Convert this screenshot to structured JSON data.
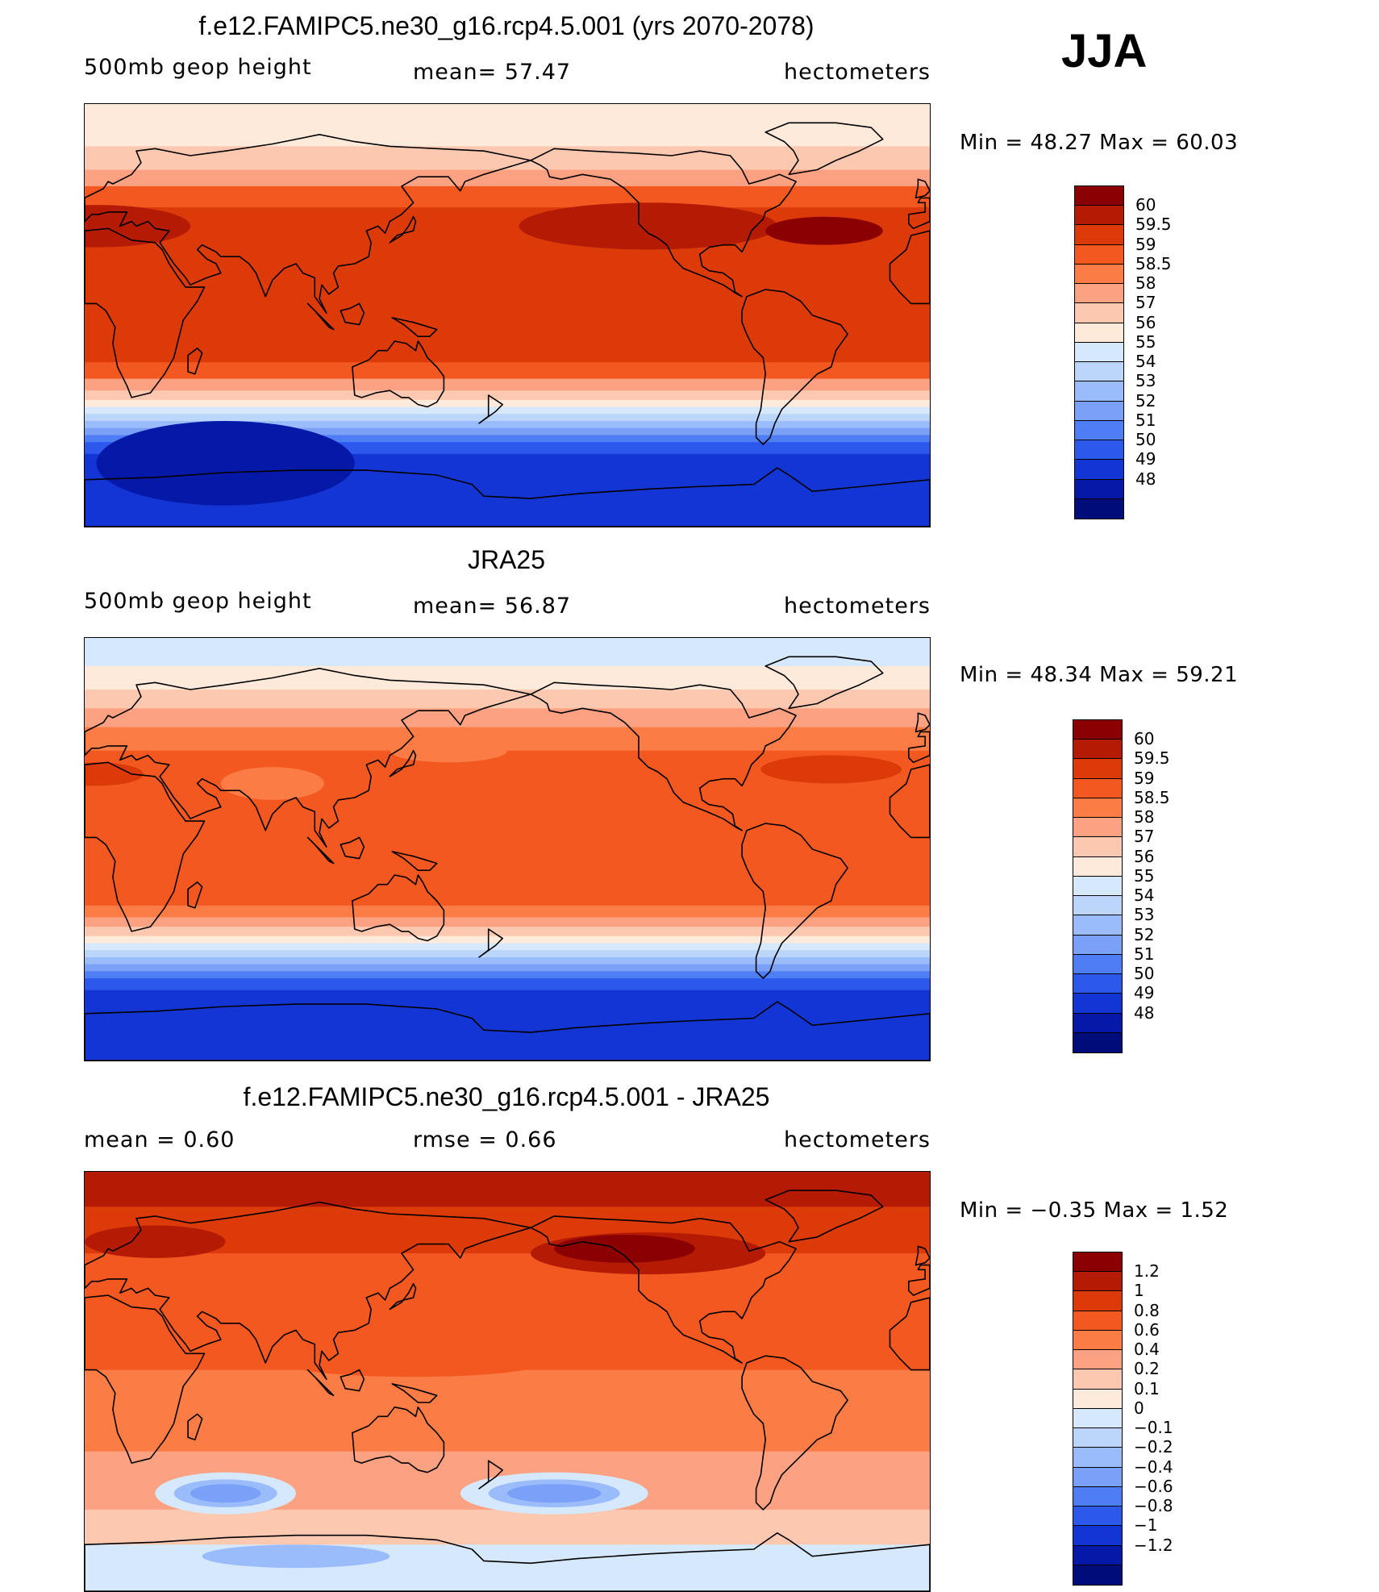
{
  "season": "JJA",
  "panels": [
    {
      "id": "model",
      "title": "f.e12.FAMIPC5.ne30_g16.rcp4.5.001 (yrs 2070-2078)",
      "left_label": "500mb geop height",
      "center_label": "mean=  57.47",
      "units": "hectometers",
      "stats": "Min =   48.27  Max =   60.03",
      "stats_min": 48.27,
      "stats_max": 60.03,
      "colors": [
        "#8b0000",
        "#b51a05",
        "#dd3a0a",
        "#f25820",
        "#fb7c45",
        "#fca282",
        "#fdc8b0",
        "#feeadb",
        "#d6e8fb",
        "#bcd6fb",
        "#9bbcfb",
        "#7aa0f8",
        "#4f7df3",
        "#2c58ec",
        "#1235d4",
        "#0618a8",
        "#000c7a"
      ],
      "levels": [
        "60",
        "59.5",
        "59",
        "58.5",
        "58",
        "57",
        "56",
        "55",
        "54",
        "53",
        "52",
        "51",
        "50",
        "49",
        "48"
      ],
      "bands": [
        {
          "lat_top": 90,
          "color": "#feeadb"
        },
        {
          "lat_top": 72,
          "color": "#fdc8b0"
        },
        {
          "lat_top": 62,
          "color": "#fca282"
        },
        {
          "lat_top": 55,
          "color": "#f25820"
        },
        {
          "lat_top": 46,
          "color": "#dd3a0a"
        },
        {
          "lat_top": -20,
          "color": "#f25820"
        },
        {
          "lat_top": -27,
          "color": "#fca282"
        },
        {
          "lat_top": -32,
          "color": "#fdc8b0"
        },
        {
          "lat_top": -36,
          "color": "#feeadb"
        },
        {
          "lat_top": -39,
          "color": "#d6e8fb"
        },
        {
          "lat_top": -42,
          "color": "#bcd6fb"
        },
        {
          "lat_top": -45,
          "color": "#9bbcfb"
        },
        {
          "lat_top": -48,
          "color": "#7aa0f8"
        },
        {
          "lat_top": -51,
          "color": "#4f7df3"
        },
        {
          "lat_top": -54,
          "color": "#2c58ec"
        },
        {
          "lat_top": -59,
          "color": "#1235d4"
        }
      ],
      "blobs": [
        {
          "lon": 240,
          "lat": 38,
          "rx": 55,
          "ry": 10,
          "color": "#b51a05"
        },
        {
          "lon": 5,
          "lat": 38,
          "rx": 40,
          "ry": 9,
          "color": "#b51a05"
        },
        {
          "lon": 315,
          "lat": 36,
          "rx": 25,
          "ry": 6,
          "color": "#8b0000"
        },
        {
          "lon": 60,
          "lat": -63,
          "rx": 55,
          "ry": 18,
          "color": "#0618a8"
        }
      ]
    },
    {
      "id": "obs",
      "title": "JRA25",
      "left_label": "500mb geop height",
      "center_label": "mean=  56.87",
      "units": "hectometers",
      "stats": "Min =   48.34  Max =   59.21",
      "stats_min": 48.34,
      "stats_max": 59.21,
      "colors": [
        "#8b0000",
        "#b51a05",
        "#dd3a0a",
        "#f25820",
        "#fb7c45",
        "#fca282",
        "#fdc8b0",
        "#feeadb",
        "#d6e8fb",
        "#bcd6fb",
        "#9bbcfb",
        "#7aa0f8",
        "#4f7df3",
        "#2c58ec",
        "#1235d4",
        "#0618a8",
        "#000c7a"
      ],
      "levels": [
        "60",
        "59.5",
        "59",
        "58.5",
        "58",
        "57",
        "56",
        "55",
        "54",
        "53",
        "52",
        "51",
        "50",
        "49",
        "48"
      ],
      "bands": [
        {
          "lat_top": 90,
          "color": "#d6e8fb"
        },
        {
          "lat_top": 78,
          "color": "#feeadb"
        },
        {
          "lat_top": 68,
          "color": "#fdc8b0"
        },
        {
          "lat_top": 60,
          "color": "#fca282"
        },
        {
          "lat_top": 52,
          "color": "#fb7c45"
        },
        {
          "lat_top": 42,
          "color": "#f25820"
        },
        {
          "lat_top": -24,
          "color": "#fb7c45"
        },
        {
          "lat_top": -29,
          "color": "#fca282"
        },
        {
          "lat_top": -33,
          "color": "#fdc8b0"
        },
        {
          "lat_top": -37,
          "color": "#feeadb"
        },
        {
          "lat_top": -40,
          "color": "#d6e8fb"
        },
        {
          "lat_top": -43,
          "color": "#bcd6fb"
        },
        {
          "lat_top": -46,
          "color": "#9bbcfb"
        },
        {
          "lat_top": -49,
          "color": "#7aa0f8"
        },
        {
          "lat_top": -52,
          "color": "#4f7df3"
        },
        {
          "lat_top": -55,
          "color": "#2c58ec"
        },
        {
          "lat_top": -60,
          "color": "#1235d4"
        }
      ],
      "blobs": [
        {
          "lon": 318,
          "lat": 34,
          "rx": 30,
          "ry": 6,
          "color": "#dd3a0a"
        },
        {
          "lon": 5,
          "lat": 32,
          "rx": 20,
          "ry": 5,
          "color": "#dd3a0a"
        },
        {
          "lon": 80,
          "lat": 28,
          "rx": 22,
          "ry": 7,
          "color": "#fb7c45"
        },
        {
          "lon": 155,
          "lat": 42,
          "rx": 25,
          "ry": 5,
          "color": "#fb7c45"
        }
      ]
    },
    {
      "id": "diff",
      "title": "f.e12.FAMIPC5.ne30_g16.rcp4.5.001 - JRA25",
      "left_label": "mean =    0.60",
      "center_label": "rmse =    0.66",
      "units": "hectometers",
      "stats": "Min =   −0.35  Max =    1.52",
      "stats_min": -0.35,
      "stats_max": 1.52,
      "colors": [
        "#8b0000",
        "#b51a05",
        "#dd3a0a",
        "#f25820",
        "#fb7c45",
        "#fca282",
        "#fdc8b0",
        "#feeadb",
        "#d6e8fb",
        "#bcd6fb",
        "#9bbcfb",
        "#7aa0f8",
        "#4f7df3",
        "#2c58ec",
        "#1235d4",
        "#0618a8",
        "#000c7a"
      ],
      "levels": [
        "1.2",
        "1",
        "0.8",
        "0.6",
        "0.4",
        "0.2",
        "0.1",
        "0",
        "−0.1",
        "−0.2",
        "−0.4",
        "−0.6",
        "−0.8",
        "−1",
        "−1.2"
      ],
      "bands": [
        {
          "lat_top": 90,
          "color": "#b51a05"
        },
        {
          "lat_top": 75,
          "color": "#dd3a0a"
        },
        {
          "lat_top": 55,
          "color": "#f25820"
        },
        {
          "lat_top": 30,
          "color": "#f25820"
        },
        {
          "lat_top": 5,
          "color": "#fb7c45"
        },
        {
          "lat_top": -30,
          "color": "#fca282"
        },
        {
          "lat_top": -55,
          "color": "#fdc8b0"
        },
        {
          "lat_top": -70,
          "color": "#d6e8fb"
        }
      ],
      "blobs": [
        {
          "lon": 140,
          "lat": 8,
          "rx": 55,
          "ry": 6,
          "color": "#f25820"
        },
        {
          "lon": 240,
          "lat": 55,
          "rx": 50,
          "ry": 9,
          "color": "#b51a05"
        },
        {
          "lon": 230,
          "lat": 57,
          "rx": 30,
          "ry": 6,
          "color": "#8b0000"
        },
        {
          "lon": 30,
          "lat": 60,
          "rx": 30,
          "ry": 7,
          "color": "#b51a05"
        },
        {
          "lon": 60,
          "lat": -48,
          "rx": 30,
          "ry": 9,
          "color": "#d6e8fb"
        },
        {
          "lon": 60,
          "lat": -48,
          "rx": 22,
          "ry": 6,
          "color": "#9bbcfb"
        },
        {
          "lon": 60,
          "lat": -48,
          "rx": 15,
          "ry": 4,
          "color": "#7aa0f8"
        },
        {
          "lon": 200,
          "lat": -48,
          "rx": 40,
          "ry": 9,
          "color": "#d6e8fb"
        },
        {
          "lon": 200,
          "lat": -48,
          "rx": 28,
          "ry": 6,
          "color": "#9bbcfb"
        },
        {
          "lon": 200,
          "lat": -48,
          "rx": 20,
          "ry": 4,
          "color": "#7aa0f8"
        },
        {
          "lon": 90,
          "lat": -75,
          "rx": 40,
          "ry": 5,
          "color": "#9bbcfb"
        }
      ]
    }
  ]
}
